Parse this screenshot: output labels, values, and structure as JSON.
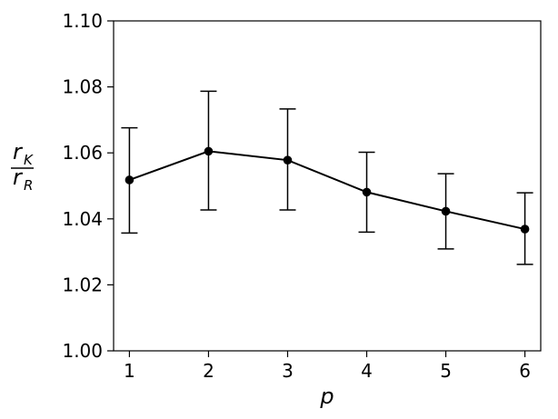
{
  "chart_data": {
    "type": "line",
    "title": "",
    "xlabel": "p",
    "ylabel": {
      "numerator": {
        "base": "r",
        "sub": "K"
      },
      "denominator": {
        "base": "r",
        "sub": "R"
      }
    },
    "x": [
      1,
      2,
      3,
      4,
      5,
      6
    ],
    "x_ticks": [
      "1",
      "2",
      "3",
      "4",
      "5",
      "6"
    ],
    "y_ticks": [
      "1.00",
      "1.02",
      "1.04",
      "1.06",
      "1.08",
      "1.10"
    ],
    "xlim": [
      0.8,
      6.2
    ],
    "ylim": [
      1.0,
      1.1
    ],
    "series": [
      {
        "values": [
          1.0518,
          1.0605,
          1.0578,
          1.0481,
          1.0423,
          1.0369
        ],
        "err_low": [
          1.0357,
          1.0427,
          1.0427,
          1.036,
          1.0309,
          1.0262
        ],
        "err_high": [
          1.0676,
          1.0787,
          1.0733,
          1.0602,
          1.0537,
          1.0479
        ],
        "color": "#000000",
        "marker": "circle"
      }
    ],
    "grid": false,
    "legend": "none"
  }
}
